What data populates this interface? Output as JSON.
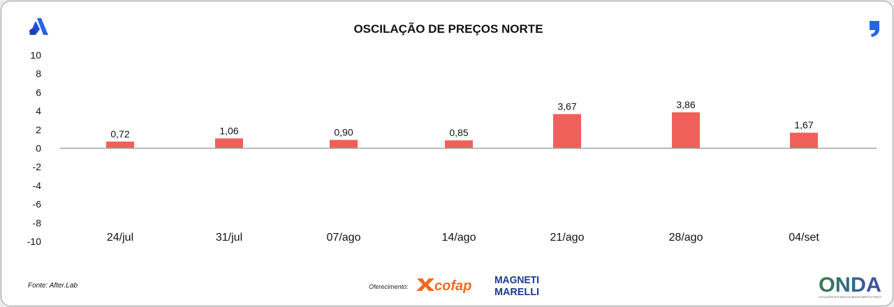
{
  "header": {
    "title": "OSCILAÇÃO DE PREÇOS NORTE"
  },
  "footer": {
    "source": "Fonte: After.Lab",
    "sponsor_label": "Oferecimento:",
    "logos": {
      "cofap": "cofap",
      "magneti_line1": "MAGNETI",
      "magneti_line2": "MARELLI",
      "onda": "ONDA",
      "onda_tagline": "OSCILAÇÕES NOS NÍVEIS DE ABASTECIMENTO E PREÇO"
    }
  },
  "icons": {
    "brand_left": "a-logo-icon",
    "brand_right": "quote-mark-icon"
  },
  "colors": {
    "bar": "#f0605a",
    "axis": "#a0a0a0",
    "text": "#111111",
    "brand_blue": "#2563eb",
    "cofap_orange": "#f26a21",
    "magneti_blue": "#1b3a8f"
  },
  "chart_data": {
    "type": "bar",
    "title": "OSCILAÇÃO DE PREÇOS NORTE",
    "xlabel": "",
    "ylabel": "",
    "categories": [
      "24/jul",
      "31/jul",
      "07/ago",
      "14/ago",
      "21/ago",
      "28/ago",
      "04/set"
    ],
    "values": [
      0.72,
      1.06,
      0.9,
      0.85,
      3.67,
      3.86,
      1.67
    ],
    "value_labels": [
      "0,72",
      "1,06",
      "0,90",
      "0,85",
      "3,67",
      "3,86",
      "1,67"
    ],
    "y_ticks": [
      10,
      8,
      6,
      4,
      2,
      0,
      -2,
      -4,
      -6,
      -8,
      -10
    ],
    "ylim": [
      -10,
      10
    ],
    "grid": false,
    "legend": "none"
  }
}
